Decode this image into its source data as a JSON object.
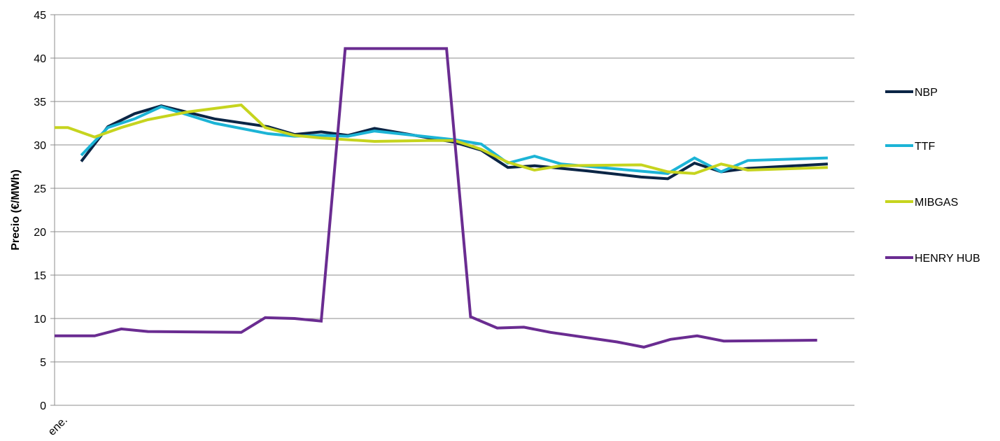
{
  "chart_data": {
    "type": "line",
    "title": "",
    "xlabel": "",
    "ylabel": "Precio (€/MWh)",
    "ylim": [
      0,
      45
    ],
    "yticks": [
      0,
      5,
      10,
      15,
      20,
      25,
      30,
      35,
      40,
      45
    ],
    "xlim": [
      0,
      30
    ],
    "xtick_labels": [
      {
        "x": 0.5,
        "label": "ene."
      }
    ],
    "grid": true,
    "legend_position": "right",
    "series": [
      {
        "name": "NBP",
        "color": "#0b2545",
        "points": [
          [
            1,
            28.1
          ],
          [
            2,
            32.1
          ],
          [
            3,
            33.6
          ],
          [
            4,
            34.5
          ],
          [
            6,
            33.0
          ],
          [
            8,
            32.1
          ],
          [
            9,
            31.2
          ],
          [
            10,
            31.5
          ],
          [
            11,
            31.1
          ],
          [
            12,
            31.9
          ],
          [
            15,
            30.3
          ],
          [
            16,
            29.4
          ],
          [
            17,
            27.4
          ],
          [
            18,
            27.6
          ],
          [
            20,
            27.0
          ],
          [
            22,
            26.3
          ],
          [
            23,
            26.1
          ],
          [
            24,
            27.9
          ],
          [
            25,
            26.9
          ],
          [
            26,
            27.3
          ],
          [
            29,
            27.8
          ]
        ]
      },
      {
        "name": "TTF",
        "color": "#1cb4d6",
        "points": [
          [
            1,
            28.8
          ],
          [
            2,
            32.0
          ],
          [
            3,
            33.0
          ],
          [
            4,
            34.4
          ],
          [
            6,
            32.5
          ],
          [
            8,
            31.3
          ],
          [
            9,
            31.0
          ],
          [
            10,
            31.1
          ],
          [
            11,
            31.0
          ],
          [
            12,
            31.6
          ],
          [
            15,
            30.6
          ],
          [
            16,
            30.1
          ],
          [
            17,
            27.9
          ],
          [
            18,
            28.7
          ],
          [
            19,
            27.8
          ],
          [
            23,
            26.7
          ],
          [
            24,
            28.5
          ],
          [
            25,
            26.9
          ],
          [
            26,
            28.2
          ],
          [
            29,
            28.5
          ]
        ]
      },
      {
        "name": "MIBGAS",
        "color": "#c6d41e",
        "points": [
          [
            0,
            32.0
          ],
          [
            0.5,
            32.0
          ],
          [
            1.5,
            30.9
          ],
          [
            2.5,
            32.0
          ],
          [
            3.5,
            32.9
          ],
          [
            5,
            33.8
          ],
          [
            7,
            34.6
          ],
          [
            7.9,
            32.0
          ],
          [
            9,
            31.1
          ],
          [
            10,
            30.8
          ],
          [
            11,
            30.6
          ],
          [
            12,
            30.4
          ],
          [
            14,
            30.5
          ],
          [
            15,
            30.5
          ],
          [
            16,
            29.5
          ],
          [
            17,
            28.0
          ],
          [
            18,
            27.1
          ],
          [
            19,
            27.6
          ],
          [
            22,
            27.7
          ],
          [
            23,
            26.9
          ],
          [
            24,
            26.7
          ],
          [
            25,
            27.8
          ],
          [
            26,
            27.1
          ],
          [
            29,
            27.4
          ]
        ]
      },
      {
        "name": "HENRY HUB",
        "color": "#6a2c91",
        "points": [
          [
            0,
            8.0
          ],
          [
            0.5,
            8.0
          ],
          [
            1.5,
            8.0
          ],
          [
            2.5,
            8.8
          ],
          [
            3.5,
            8.5
          ],
          [
            7,
            8.4
          ],
          [
            7.9,
            10.1
          ],
          [
            9,
            10.0
          ],
          [
            10,
            9.7
          ],
          [
            10.9,
            41.1
          ],
          [
            14.7,
            41.1
          ],
          [
            15.6,
            10.2
          ],
          [
            16.6,
            8.9
          ],
          [
            17.6,
            9.0
          ],
          [
            18.6,
            8.4
          ],
          [
            21.1,
            7.3
          ],
          [
            22.1,
            6.7
          ],
          [
            23.1,
            7.6
          ],
          [
            24.1,
            8.0
          ],
          [
            25.1,
            7.4
          ],
          [
            28.6,
            7.5
          ]
        ]
      }
    ]
  }
}
